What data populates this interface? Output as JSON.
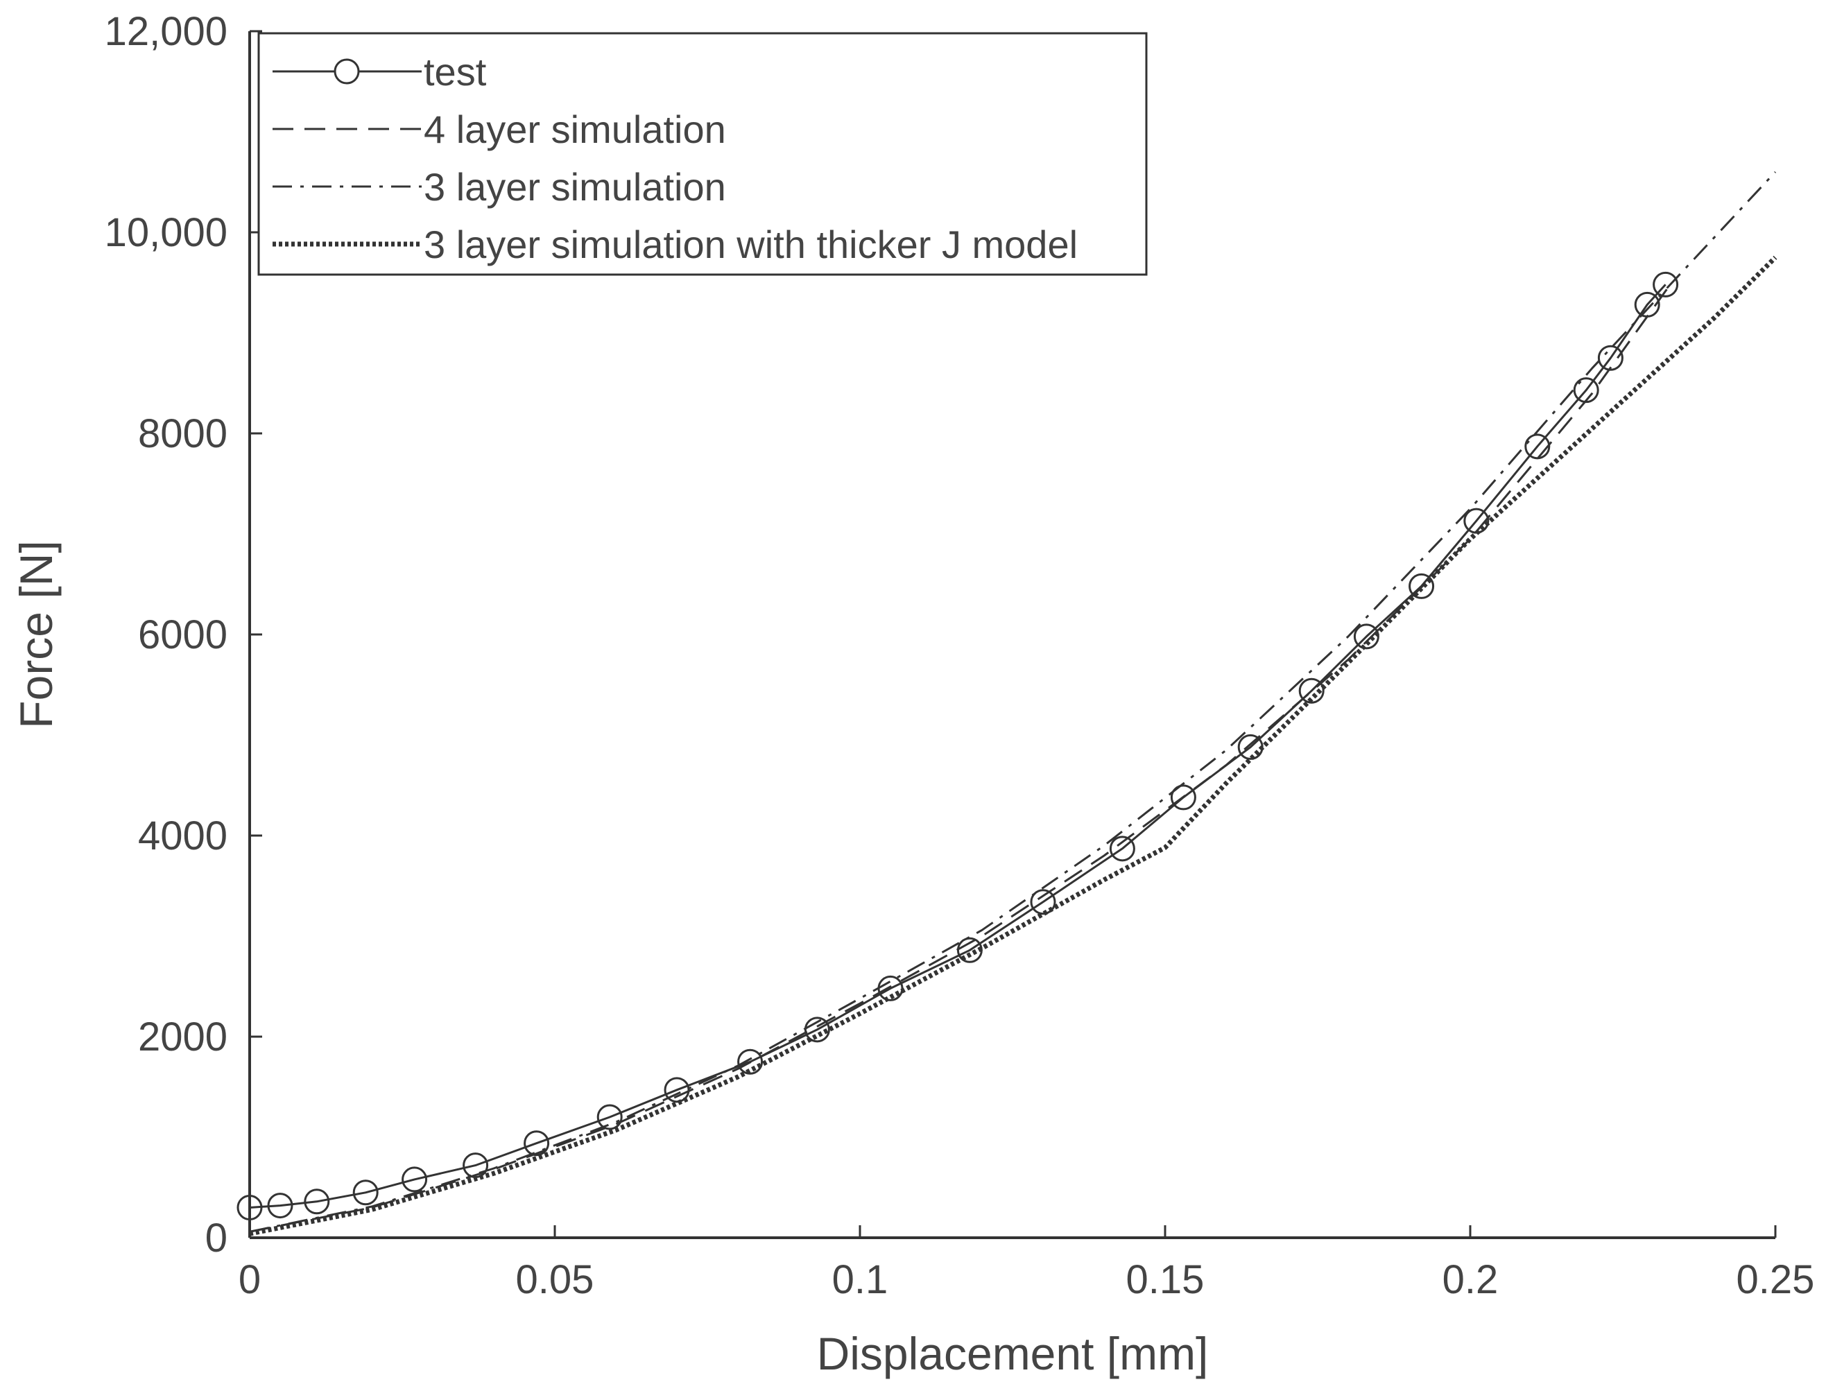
{
  "chart_data": {
    "type": "line",
    "xlabel": "Displacement [mm]",
    "ylabel": "Force [N]",
    "xlim": [
      0,
      0.25
    ],
    "ylim": [
      0,
      12000
    ],
    "x_ticks": [
      "0",
      "0.05",
      "0.1",
      "0.15",
      "0.2",
      "0.25"
    ],
    "x_tick_values": [
      0,
      0.05,
      0.1,
      0.15,
      0.2,
      0.25
    ],
    "y_ticks": [
      "0",
      "2000",
      "4000",
      "6000",
      "8000",
      "10,000",
      "12,000"
    ],
    "y_tick_values": [
      0,
      2000,
      4000,
      6000,
      8000,
      10000,
      12000
    ],
    "grid": false,
    "legend_position": "top-left",
    "line_color": "#333333",
    "series": [
      {
        "name": "test",
        "style": "solid-circle-markers",
        "x": [
          0.0,
          0.005,
          0.011,
          0.019,
          0.027,
          0.037,
          0.047,
          0.059,
          0.07,
          0.082,
          0.093,
          0.105,
          0.118,
          0.13,
          0.143,
          0.153,
          0.164,
          0.174,
          0.183,
          0.192,
          0.201,
          0.211,
          0.219,
          0.223,
          0.229,
          0.232
        ],
        "y": [
          300,
          320,
          360,
          450,
          580,
          720,
          940,
          1200,
          1470,
          1750,
          2070,
          2480,
          2860,
          3340,
          3870,
          4380,
          4880,
          5440,
          5980,
          6480,
          7130,
          7870,
          8430,
          8750,
          9280,
          9480
        ]
      },
      {
        "name": "4 layer simulation",
        "style": "dashed",
        "x": [
          0.0,
          0.02,
          0.04,
          0.06,
          0.08,
          0.1,
          0.12,
          0.14,
          0.16,
          0.18,
          0.2,
          0.22,
          0.233
        ],
        "y": [
          60,
          300,
          680,
          1130,
          1680,
          2330,
          3000,
          3800,
          4700,
          5750,
          6950,
          8400,
          9500
        ]
      },
      {
        "name": "3 layer simulation",
        "style": "dash-dot",
        "x": [
          0.0,
          0.02,
          0.04,
          0.06,
          0.08,
          0.1,
          0.12,
          0.14,
          0.16,
          0.18,
          0.2,
          0.22,
          0.24,
          0.25
        ],
        "y": [
          60,
          310,
          690,
          1150,
          1710,
          2380,
          3060,
          3900,
          4850,
          5980,
          7250,
          8650,
          9950,
          10600
        ]
      },
      {
        "name": "3 layer simulation with thicker J model",
        "style": "dotted",
        "x": [
          0.0,
          0.02,
          0.04,
          0.06,
          0.08,
          0.1,
          0.12,
          0.14,
          0.15,
          0.16,
          0.18,
          0.2,
          0.22,
          0.24,
          0.25
        ],
        "y": [
          40,
          280,
          640,
          1070,
          1600,
          2230,
          2880,
          3560,
          3880,
          4520,
          5720,
          6950,
          8050,
          9150,
          9750
        ]
      }
    ]
  }
}
